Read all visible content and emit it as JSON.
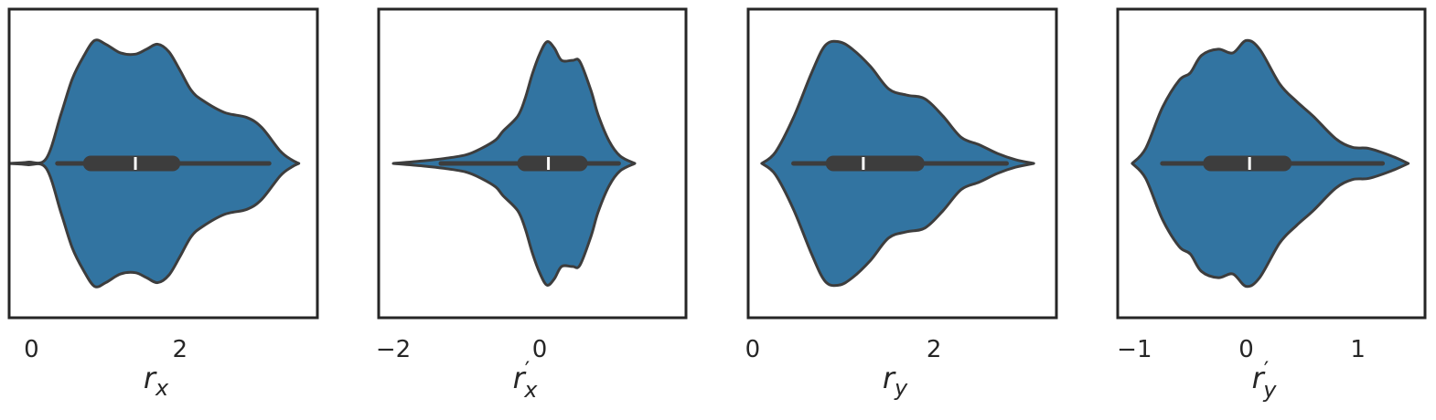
{
  "chart_data": [
    {
      "type": "violin",
      "xlabel": {
        "base": "r",
        "prime": "",
        "sub": "x"
      },
      "xlim": [
        -0.3,
        3.85
      ],
      "xticks": [
        {
          "v": 0,
          "label": "0"
        },
        {
          "v": 2,
          "label": "2"
        }
      ],
      "color": "#3274a1",
      "density": [
        [
          -0.3,
          0
        ],
        [
          -0.05,
          0.01
        ],
        [
          0.2,
          0.04
        ],
        [
          0.4,
          0.4
        ],
        [
          0.55,
          0.68
        ],
        [
          0.7,
          0.86
        ],
        [
          0.85,
          0.99
        ],
        [
          1.0,
          0.96
        ],
        [
          1.2,
          0.89
        ],
        [
          1.4,
          0.88
        ],
        [
          1.55,
          0.92
        ],
        [
          1.7,
          0.96
        ],
        [
          1.85,
          0.9
        ],
        [
          2.0,
          0.75
        ],
        [
          2.15,
          0.59
        ],
        [
          2.3,
          0.51
        ],
        [
          2.6,
          0.41
        ],
        [
          2.9,
          0.37
        ],
        [
          3.1,
          0.29
        ],
        [
          3.35,
          0.1
        ],
        [
          3.5,
          0.03
        ],
        [
          3.6,
          0
        ]
      ],
      "box": {
        "whisker_low": 0.35,
        "q1": 0.75,
        "median": 1.4,
        "q3": 1.95,
        "whisker_high": 3.2
      }
    },
    {
      "type": "violin",
      "xlabel": {
        "base": "r",
        "prime": "′",
        "sub": "x"
      },
      "xlim": [
        -2.2,
        2.0
      ],
      "xticks": [
        {
          "v": -2,
          "label": "−2"
        },
        {
          "v": 0,
          "label": "0"
        }
      ],
      "color": "#3274a1",
      "density": [
        [
          -2.0,
          0
        ],
        [
          -1.6,
          0.02
        ],
        [
          -1.3,
          0.04
        ],
        [
          -1.0,
          0.07
        ],
        [
          -0.8,
          0.12
        ],
        [
          -0.6,
          0.19
        ],
        [
          -0.5,
          0.26
        ],
        [
          -0.3,
          0.38
        ],
        [
          -0.2,
          0.52
        ],
        [
          -0.1,
          0.72
        ],
        [
          0.0,
          0.88
        ],
        [
          0.1,
          0.98
        ],
        [
          0.2,
          0.93
        ],
        [
          0.3,
          0.83
        ],
        [
          0.45,
          0.83
        ],
        [
          0.55,
          0.82
        ],
        [
          0.7,
          0.59
        ],
        [
          0.8,
          0.39
        ],
        [
          0.95,
          0.18
        ],
        [
          1.1,
          0.06
        ],
        [
          1.3,
          0
        ]
      ],
      "box": {
        "whisker_low": -1.35,
        "q1": -0.25,
        "median": 0.12,
        "q3": 0.6,
        "whisker_high": 1.08
      }
    },
    {
      "type": "violin",
      "xlabel": {
        "base": "r",
        "prime": "",
        "sub": "y"
      },
      "xlim": [
        -0.05,
        3.35
      ],
      "xticks": [
        {
          "v": 0,
          "label": "0"
        },
        {
          "v": 2,
          "label": "2"
        }
      ],
      "color": "#3274a1",
      "density": [
        [
          0.1,
          0
        ],
        [
          0.25,
          0.09
        ],
        [
          0.45,
          0.37
        ],
        [
          0.65,
          0.73
        ],
        [
          0.8,
          0.95
        ],
        [
          0.95,
          0.98
        ],
        [
          1.1,
          0.92
        ],
        [
          1.3,
          0.78
        ],
        [
          1.5,
          0.6
        ],
        [
          1.7,
          0.55
        ],
        [
          1.9,
          0.52
        ],
        [
          2.1,
          0.38
        ],
        [
          2.3,
          0.21
        ],
        [
          2.5,
          0.15
        ],
        [
          2.7,
          0.08
        ],
        [
          2.9,
          0.03
        ],
        [
          3.1,
          0
        ]
      ],
      "box": {
        "whisker_low": 0.45,
        "q1": 0.85,
        "median": 1.22,
        "q3": 1.85,
        "whisker_high": 2.8
      }
    },
    {
      "type": "violin",
      "xlabel": {
        "base": "r",
        "prime": "′",
        "sub": "y"
      },
      "xlim": [
        -1.15,
        1.6
      ],
      "xticks": [
        {
          "v": -1,
          "label": "−1"
        },
        {
          "v": 0,
          "label": "0"
        },
        {
          "v": 1,
          "label": "1"
        }
      ],
      "color": "#3274a1",
      "density": [
        [
          -1.02,
          0
        ],
        [
          -0.9,
          0.12
        ],
        [
          -0.75,
          0.45
        ],
        [
          -0.6,
          0.67
        ],
        [
          -0.5,
          0.73
        ],
        [
          -0.4,
          0.87
        ],
        [
          -0.25,
          0.92
        ],
        [
          -0.12,
          0.89
        ],
        [
          0.0,
          0.99
        ],
        [
          0.12,
          0.92
        ],
        [
          0.3,
          0.64
        ],
        [
          0.45,
          0.5
        ],
        [
          0.6,
          0.38
        ],
        [
          0.8,
          0.2
        ],
        [
          0.95,
          0.13
        ],
        [
          1.1,
          0.12
        ],
        [
          1.3,
          0.06
        ],
        [
          1.45,
          0
        ]
      ],
      "box": {
        "whisker_low": -0.75,
        "q1": -0.35,
        "median": 0.03,
        "q3": 0.37,
        "whisker_high": 1.22
      }
    }
  ]
}
